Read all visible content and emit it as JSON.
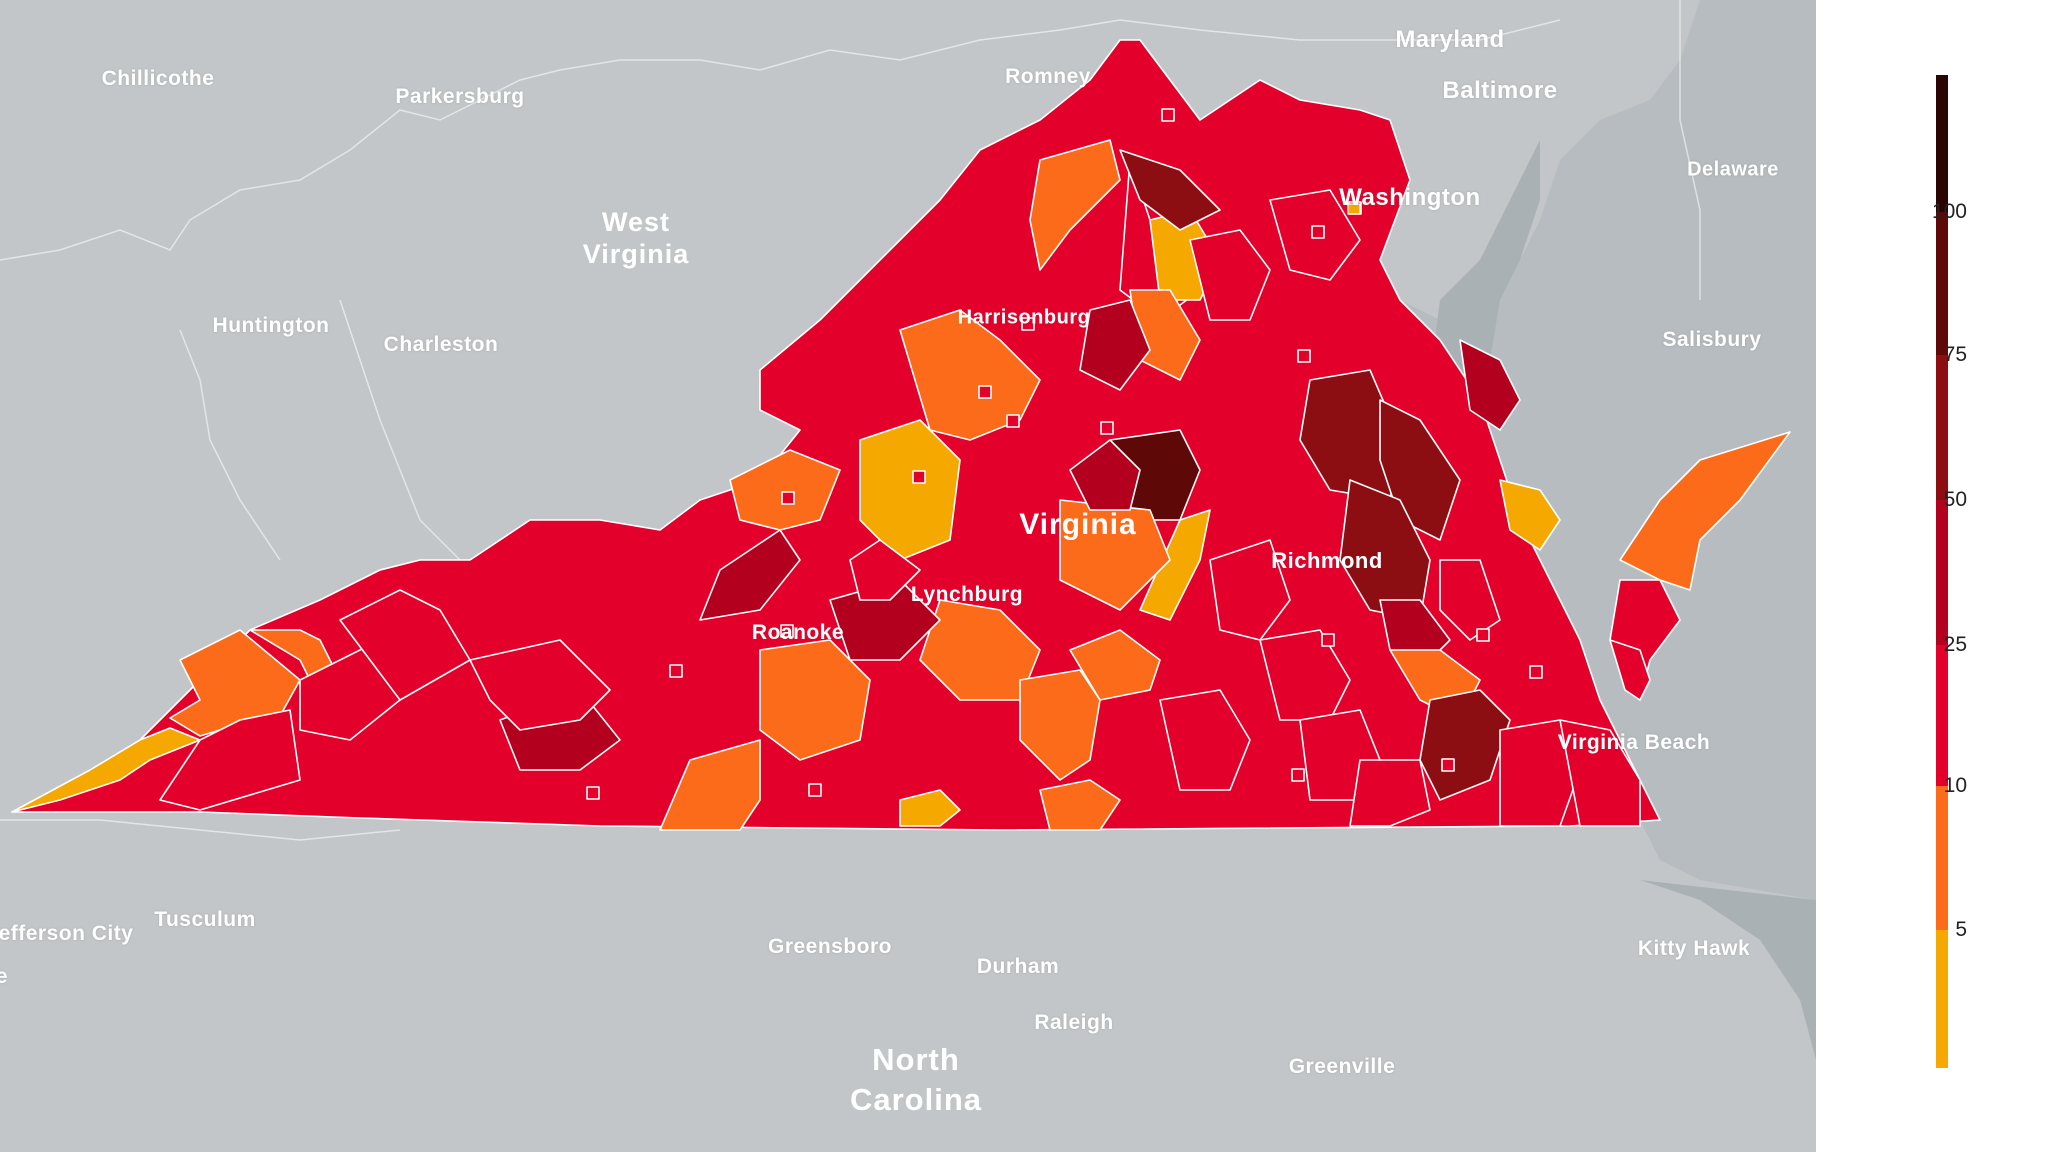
{
  "map": {
    "state_labels": [
      {
        "id": "west-virginia",
        "lines": [
          "West",
          "Virginia"
        ]
      },
      {
        "id": "virginia",
        "lines": [
          "Virginia"
        ]
      },
      {
        "id": "north-carolina",
        "lines": [
          "North",
          "Carolina"
        ]
      },
      {
        "id": "maryland",
        "lines": [
          "Maryland"
        ]
      },
      {
        "id": "delaware",
        "lines": [
          "Delaware"
        ]
      }
    ],
    "city_labels": [
      "Chillicothe",
      "Parkersburg",
      "Romney",
      "Baltimore",
      "Washington",
      "Huntington",
      "Charleston",
      "Harrisonburg",
      "Salisbury",
      "Richmond",
      "Lynchburg",
      "Roanoke",
      "Virginia Beach",
      "efferson City",
      "Tusculum",
      "Greensboro",
      "Durham",
      "Raleigh",
      "Greenville",
      "Kitty Hawk"
    ],
    "colors": {
      "background": "#c2c6c8",
      "water": "#b3babd",
      "border_lines": "#ffffff"
    }
  },
  "legend": {
    "ticks": [
      "100",
      "75",
      "50",
      "25",
      "10",
      "5"
    ],
    "bins": [
      {
        "min": 0,
        "max": 5,
        "color": "#f5a800"
      },
      {
        "min": 5,
        "max": 10,
        "color": "#fc6b1a"
      },
      {
        "min": 10,
        "max": 25,
        "color": "#e3002b"
      },
      {
        "min": 25,
        "max": 50,
        "color": "#b3001f"
      },
      {
        "min": 50,
        "max": 75,
        "color": "#8c0d12"
      },
      {
        "min": 75,
        "max": 100,
        "color": "#5e0808"
      },
      {
        "min": 100,
        "max": 125,
        "color": "#2b0404"
      }
    ]
  }
}
